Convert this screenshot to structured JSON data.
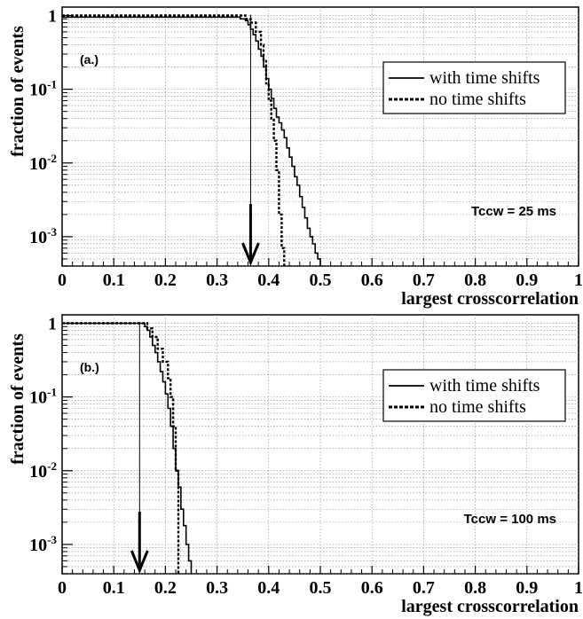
{
  "chart_data": [
    {
      "type": "line",
      "panel_label": "(a.)",
      "annotation": "Tccw = 25 ms",
      "xlabel": "largest crosscorrelation",
      "ylabel": "fraction of events",
      "xlim": [
        0,
        1
      ],
      "ylim": [
        0.0004,
        1.3
      ],
      "yscale": "log",
      "grid": true,
      "legend_position": "top-right",
      "x_ticks": [
        "0",
        "0.1",
        "0.2",
        "0.3",
        "0.4",
        "0.5",
        "0.6",
        "0.7",
        "0.8",
        "0.9",
        "1"
      ],
      "y_ticks": [
        {
          "base": "1",
          "exp": ""
        },
        {
          "base": "10",
          "exp": "-1"
        },
        {
          "base": "10",
          "exp": "-2"
        },
        {
          "base": "10",
          "exp": "-3"
        }
      ],
      "arrow_x": 0.365,
      "series": [
        {
          "name": "with time shifts",
          "style": "solid",
          "x": [
            0,
            0.33,
            0.345,
            0.355,
            0.36,
            0.365,
            0.37,
            0.375,
            0.38,
            0.385,
            0.39,
            0.395,
            0.4,
            0.405,
            0.41,
            0.415,
            0.42,
            0.425,
            0.43,
            0.435,
            0.44,
            0.445,
            0.45,
            0.455,
            0.46,
            0.465,
            0.47,
            0.475,
            0.48,
            0.485,
            0.49,
            0.495,
            0.5
          ],
          "y": [
            0.95,
            0.95,
            0.9,
            0.85,
            0.75,
            0.65,
            0.55,
            0.45,
            0.35,
            0.28,
            0.2,
            0.14,
            0.1,
            0.075,
            0.055,
            0.042,
            0.035,
            0.028,
            0.022,
            0.016,
            0.012,
            0.009,
            0.0065,
            0.005,
            0.0035,
            0.0025,
            0.0018,
            0.0013,
            0.001,
            0.0008,
            0.0006,
            0.0005,
            0.0004
          ]
        },
        {
          "name": "no time shifts",
          "style": "dashed",
          "x": [
            0,
            0.34,
            0.355,
            0.365,
            0.375,
            0.385,
            0.39,
            0.395,
            0.4,
            0.405,
            0.41,
            0.415,
            0.42,
            0.425,
            0.43
          ],
          "y": [
            1.0,
            1.0,
            0.9,
            0.8,
            0.6,
            0.4,
            0.25,
            0.12,
            0.07,
            0.04,
            0.02,
            0.008,
            0.002,
            0.0007,
            0.0004
          ]
        }
      ]
    },
    {
      "type": "line",
      "panel_label": "(b.)",
      "annotation": "Tccw = 100 ms",
      "xlabel": "largest crosscorrelation",
      "ylabel": "fraction of events",
      "xlim": [
        0,
        1
      ],
      "ylim": [
        0.0004,
        1.3
      ],
      "yscale": "log",
      "grid": true,
      "legend_position": "top-right",
      "x_ticks": [
        "0",
        "0.1",
        "0.2",
        "0.3",
        "0.4",
        "0.5",
        "0.6",
        "0.7",
        "0.8",
        "0.9",
        "1"
      ],
      "y_ticks": [
        {
          "base": "1",
          "exp": ""
        },
        {
          "base": "10",
          "exp": "-1"
        },
        {
          "base": "10",
          "exp": "-2"
        },
        {
          "base": "10",
          "exp": "-3"
        }
      ],
      "arrow_x": 0.15,
      "series": [
        {
          "name": "with time shifts",
          "style": "solid",
          "x": [
            0,
            0.15,
            0.16,
            0.165,
            0.17,
            0.175,
            0.18,
            0.185,
            0.19,
            0.195,
            0.2,
            0.205,
            0.21,
            0.215,
            0.22,
            0.225,
            0.23,
            0.235,
            0.24,
            0.245,
            0.25
          ],
          "y": [
            1.0,
            1.0,
            0.9,
            0.8,
            0.65,
            0.5,
            0.4,
            0.3,
            0.22,
            0.16,
            0.11,
            0.07,
            0.04,
            0.02,
            0.01,
            0.006,
            0.003,
            0.0018,
            0.001,
            0.0006,
            0.0004
          ]
        },
        {
          "name": "no time shifts",
          "style": "dashed",
          "x": [
            0,
            0.155,
            0.165,
            0.175,
            0.185,
            0.195,
            0.205,
            0.21,
            0.215,
            0.22,
            0.225
          ],
          "y": [
            1.0,
            1.0,
            0.85,
            0.65,
            0.45,
            0.3,
            0.18,
            0.1,
            0.04,
            0.01,
            0.003
          ]
        }
      ]
    }
  ]
}
